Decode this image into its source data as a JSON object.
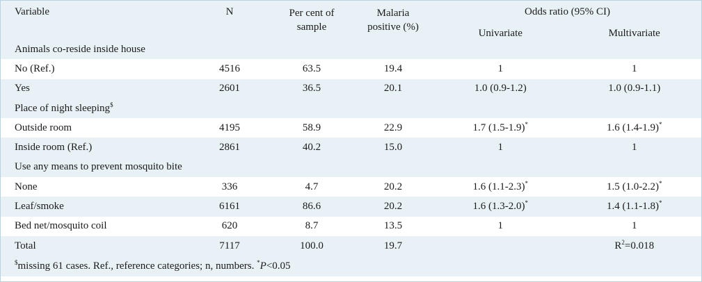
{
  "header": {
    "variable": "Variable",
    "n": "N",
    "pct_line1": "Per cent of",
    "pct_line2": "sample",
    "mal_line1": "Malaria",
    "mal_line2": "positive (%)",
    "or_title": "Odds ratio (95% CI)",
    "univariate": "Univariate",
    "multivariate": "Multivariate"
  },
  "rows": [
    {
      "kind": "section",
      "label": "Animals co-reside inside house"
    },
    {
      "kind": "data",
      "label": "No (Ref.)",
      "n": "4516",
      "pct": "63.5",
      "mal": "19.4",
      "uni": "1",
      "uni_sig": "",
      "mul": "1",
      "mul_sig": ""
    },
    {
      "kind": "data",
      "label": "Yes",
      "n": "2601",
      "pct": "36.5",
      "mal": "20.1",
      "uni": "1.0 (0.9-1.2)",
      "uni_sig": "",
      "mul": "1.0 (0.9-1.1)",
      "mul_sig": ""
    },
    {
      "kind": "section",
      "label": "Place of night sleeping",
      "label_sup": "$"
    },
    {
      "kind": "data",
      "label": "Outside room",
      "n": "4195",
      "pct": "58.9",
      "mal": "22.9",
      "uni": "1.7 (1.5-1.9)",
      "uni_sig": "*",
      "mul": "1.6 (1.4-1.9)",
      "mul_sig": "*"
    },
    {
      "kind": "data",
      "label": "Inside room (Ref.)",
      "n": "2861",
      "pct": "40.2",
      "mal": "15.0",
      "uni": "1",
      "uni_sig": "",
      "mul": "1",
      "mul_sig": ""
    },
    {
      "kind": "section",
      "label": "Use any means to prevent mosquito bite"
    },
    {
      "kind": "data",
      "label": "None",
      "n": "336",
      "pct": "4.7",
      "mal": "20.2",
      "uni": "1.6 (1.1-2.3)",
      "uni_sig": "*",
      "mul": "1.5 (1.0-2.2)",
      "mul_sig": "*"
    },
    {
      "kind": "data",
      "label": "Leaf/smoke",
      "n": "6161",
      "pct": "86.6",
      "mal": "20.2",
      "uni": "1.6 (1.3-2.0)",
      "uni_sig": "*",
      "mul": "1.4 (1.1-1.8)",
      "mul_sig": "*"
    },
    {
      "kind": "data",
      "label": "Bed net/mosquito coil",
      "n": "620",
      "pct": "8.7",
      "mal": "13.5",
      "uni": "1",
      "uni_sig": "",
      "mul": "1",
      "mul_sig": ""
    },
    {
      "kind": "data",
      "label": "Total",
      "n": "7117",
      "pct": "100.0",
      "mal": "19.7",
      "uni": "",
      "uni_sig": "",
      "mul": "R",
      "mul_sig": "2",
      "mul_tail": "=0.018"
    }
  ],
  "footnote": {
    "sup_mark": "$",
    "text": "missing 61 cases. Ref., reference categories; n, numbers. ",
    "sig_mark": "*",
    "p_label": "P",
    "p_rest": "<0.05"
  },
  "colors": {
    "band_fill": "#e8f1f6",
    "border": "#b9d2de"
  }
}
